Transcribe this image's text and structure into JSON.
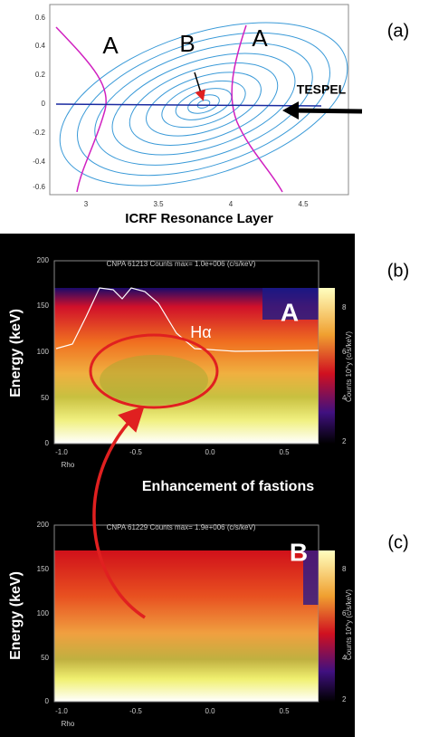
{
  "panels": [
    {
      "label": "(a)",
      "y_ticks": [
        "0.6",
        "0.4",
        "0.2",
        "0",
        "-0.2",
        "-0.4",
        "-0.6"
      ],
      "x_ticks": [
        "3",
        "3.5",
        "4",
        "4.5"
      ],
      "x_axis_label": "ICRF Resonance Layer",
      "annotations": [
        "A",
        "B",
        "A",
        "TESPEL"
      ]
    },
    {
      "label": "(b)",
      "header": "CNPA 61213 Counts  max= 1.0e+006 (c/s/keV)",
      "y_axis_label": "Energy (keV)",
      "y_ticks": [
        "200",
        "150",
        "100",
        "50",
        "0"
      ],
      "x_ticks": [
        "-1.0",
        "-0.5",
        "0.0",
        "0.5"
      ],
      "x_axis_label": "Rho",
      "colorbar_ticks": [
        "8",
        "6",
        "4",
        "2"
      ],
      "colorbar_label": "Counts 10^y (c/s/keV)",
      "annotations": [
        "A",
        "Hα"
      ]
    },
    {
      "label": "(c)",
      "header": "CNPA 61229 Counts  max= 1.9e+006 (c/s/keV)",
      "y_axis_label": "Energy (keV)",
      "y_ticks": [
        "200",
        "150",
        "100",
        "50",
        "0"
      ],
      "x_ticks": [
        "-1.0",
        "-0.5",
        "0.0",
        "0.5"
      ],
      "x_axis_label": "Rho",
      "colorbar_ticks": [
        "8",
        "6",
        "4",
        "2"
      ],
      "colorbar_label": "Counts 10^y (c/s/keV)",
      "annotations": [
        "B"
      ]
    }
  ],
  "caption": "Enhancement of fastions"
}
